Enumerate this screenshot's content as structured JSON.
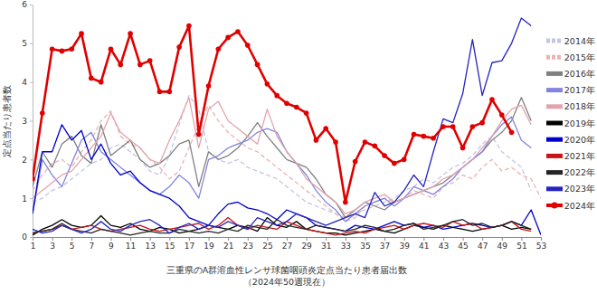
{
  "chart_data": {
    "type": "line",
    "title": "三重県のA群溶血性レンサ球菌咽頭炎定点当たり患者届出数",
    "subtitle": "（2024年50週現在）",
    "y_label": "定点当たり患者数",
    "x": [
      1,
      2,
      3,
      4,
      5,
      6,
      7,
      8,
      9,
      10,
      11,
      12,
      13,
      14,
      15,
      16,
      17,
      18,
      19,
      20,
      21,
      22,
      23,
      24,
      25,
      26,
      27,
      28,
      29,
      30,
      31,
      32,
      33,
      34,
      35,
      36,
      37,
      38,
      39,
      40,
      41,
      42,
      43,
      44,
      45,
      46,
      47,
      48,
      49,
      50,
      51,
      52,
      53
    ],
    "xlim": [
      1,
      53
    ],
    "xticks": [
      1,
      3,
      5,
      7,
      9,
      11,
      13,
      15,
      17,
      19,
      21,
      23,
      25,
      27,
      29,
      31,
      33,
      35,
      37,
      39,
      41,
      43,
      45,
      47,
      49,
      51,
      53
    ],
    "ylim": [
      0,
      6
    ],
    "yticks": [
      0,
      1,
      2,
      3,
      4,
      5,
      6
    ],
    "grid": false,
    "legend": "right",
    "series": [
      {
        "name": "2014年",
        "color": "#c4c4e4",
        "line_style": "dashed",
        "values": [
          0.9,
          1.0,
          1.2,
          1.3,
          1.5,
          1.7,
          1.9,
          2.0,
          2.3,
          2.4,
          2.2,
          2.0,
          1.7,
          1.6,
          2.1,
          2.9,
          3.65,
          3.3,
          2.2,
          2.0,
          1.9,
          2.0,
          1.8,
          1.7,
          1.6,
          1.5,
          1.3,
          1.1,
          0.9,
          0.8,
          0.7,
          0.6,
          0.5,
          0.6,
          0.7,
          0.8,
          0.9,
          1.0,
          1.2,
          1.3,
          1.5,
          1.4,
          1.6,
          1.8,
          1.9,
          2.1,
          2.4,
          2.6,
          2.2,
          2.0,
          1.8,
          1.2,
          null
        ]
      },
      {
        "name": "2015年",
        "color": "#e8b4b4",
        "line_style": "dashed",
        "values": [
          1.2,
          1.6,
          1.9,
          2.0,
          1.8,
          2.2,
          2.5,
          3.0,
          3.25,
          2.6,
          2.4,
          2.3,
          2.0,
          1.8,
          1.5,
          1.7,
          2.3,
          2.9,
          3.4,
          3.0,
          2.7,
          2.5,
          2.3,
          2.2,
          2.0,
          1.8,
          1.6,
          1.4,
          1.2,
          1.0,
          0.8,
          0.6,
          0.4,
          0.5,
          0.8,
          0.9,
          1.0,
          0.9,
          1.0,
          1.2,
          1.1,
          1.0,
          1.3,
          1.4,
          1.6,
          1.5,
          1.8,
          2.0,
          1.7,
          1.8,
          1.6,
          1.5,
          1.0
        ]
      },
      {
        "name": "2016年",
        "color": "#808080",
        "line_style": "solid",
        "values": [
          1.3,
          2.2,
          1.8,
          2.4,
          2.6,
          2.1,
          1.9,
          2.9,
          2.1,
          2.3,
          2.5,
          2.0,
          1.8,
          1.9,
          2.1,
          2.4,
          2.5,
          1.3,
          2.2,
          2.0,
          2.1,
          2.3,
          2.6,
          2.95,
          2.6,
          2.3,
          2.0,
          1.9,
          1.8,
          1.5,
          1.1,
          0.9,
          0.5,
          0.7,
          0.9,
          0.8,
          0.7,
          0.9,
          1.0,
          1.1,
          1.2,
          1.3,
          1.4,
          1.6,
          1.8,
          2.0,
          2.2,
          2.5,
          2.7,
          3.0,
          3.6,
          3.0,
          null
        ]
      },
      {
        "name": "2017年",
        "color": "#8484e0",
        "line_style": "solid",
        "values": [
          0.6,
          2.0,
          1.6,
          1.3,
          1.9,
          2.5,
          2.7,
          2.2,
          2.0,
          1.8,
          1.6,
          1.4,
          1.2,
          1.1,
          1.3,
          1.6,
          1.4,
          1.0,
          2.0,
          2.1,
          2.3,
          2.4,
          2.5,
          2.7,
          2.8,
          2.7,
          2.2,
          1.9,
          1.6,
          1.2,
          0.9,
          0.7,
          0.4,
          0.6,
          0.8,
          0.9,
          1.0,
          0.8,
          1.0,
          1.3,
          1.2,
          1.1,
          1.3,
          1.5,
          1.8,
          2.0,
          2.2,
          2.6,
          2.9,
          3.1,
          2.5,
          2.3,
          null
        ]
      },
      {
        "name": "2018年",
        "color": "#e2a4ac",
        "line_style": "solid",
        "values": [
          1.0,
          1.2,
          1.4,
          1.6,
          1.7,
          2.0,
          2.3,
          2.6,
          3.2,
          2.7,
          2.5,
          2.3,
          2.0,
          1.9,
          2.5,
          3.0,
          3.6,
          2.3,
          3.3,
          3.5,
          3.0,
          2.8,
          2.6,
          2.4,
          3.3,
          2.6,
          2.2,
          1.9,
          1.5,
          1.3,
          1.1,
          0.9,
          0.6,
          0.7,
          0.9,
          1.0,
          1.1,
          0.9,
          1.0,
          1.1,
          1.2,
          1.3,
          1.5,
          1.6,
          1.8,
          2.0,
          2.3,
          2.6,
          3.0,
          3.3,
          3.4,
          2.9,
          null
        ]
      },
      {
        "name": "2019年",
        "color": "#000000",
        "line_style": "solid",
        "values": [
          0.05,
          0.2,
          0.3,
          0.45,
          0.3,
          0.25,
          0.3,
          0.55,
          0.3,
          0.25,
          0.35,
          0.2,
          0.15,
          0.25,
          0.2,
          0.1,
          0.15,
          0.2,
          0.3,
          0.25,
          0.2,
          0.3,
          0.25,
          0.15,
          0.5,
          0.3,
          0.25,
          0.4,
          0.2,
          0.15,
          0.1,
          0.1,
          0.05,
          0.1,
          0.15,
          0.2,
          0.15,
          0.1,
          0.2,
          0.3,
          0.25,
          0.2,
          0.3,
          0.25,
          0.2,
          0.15,
          0.2,
          0.25,
          0.3,
          0.2,
          0.25,
          0.2,
          null
        ]
      },
      {
        "name": "2020年",
        "color": "#0000cc",
        "line_style": "solid",
        "values": [
          0.6,
          2.2,
          2.2,
          2.9,
          2.5,
          2.75,
          2.0,
          2.4,
          1.9,
          1.6,
          1.7,
          1.4,
          1.2,
          1.1,
          1.0,
          0.8,
          0.5,
          0.4,
          0.3,
          0.6,
          0.85,
          0.9,
          0.75,
          0.7,
          0.6,
          0.45,
          0.7,
          0.6,
          0.5,
          0.3,
          0.25,
          0.2,
          0.15,
          0.3,
          0.25,
          0.2,
          0.3,
          0.4,
          0.3,
          0.35,
          0.25,
          0.3,
          0.2,
          0.25,
          0.3,
          0.35,
          0.3,
          0.25,
          0.3,
          0.4,
          0.3,
          0.7,
          0.05
        ]
      },
      {
        "name": "2021年",
        "color": "#c81414",
        "line_style": "solid",
        "values": [
          0.1,
          0.15,
          0.2,
          0.3,
          0.2,
          0.25,
          0.3,
          0.2,
          0.15,
          0.2,
          0.25,
          0.3,
          0.2,
          0.15,
          0.2,
          0.25,
          0.3,
          0.35,
          0.2,
          0.3,
          0.5,
          0.3,
          0.2,
          0.3,
          0.25,
          0.2,
          0.4,
          0.3,
          0.2,
          0.15,
          0.1,
          0.05,
          0.1,
          0.15,
          0.1,
          0.2,
          0.25,
          0.3,
          0.2,
          0.3,
          0.35,
          0.3,
          0.25,
          0.4,
          0.3,
          0.35,
          0.2,
          0.25,
          0.3,
          0.4,
          0.2,
          0.15,
          null
        ]
      },
      {
        "name": "2022年",
        "color": "#242424",
        "line_style": "solid",
        "values": [
          0.1,
          0.15,
          0.2,
          0.35,
          0.2,
          0.15,
          0.1,
          0.2,
          0.15,
          0.1,
          0.05,
          0.1,
          0.15,
          0.1,
          0.1,
          0.2,
          0.15,
          0.1,
          0.15,
          0.1,
          0.2,
          0.15,
          0.3,
          0.25,
          0.2,
          0.45,
          0.3,
          0.25,
          0.2,
          0.3,
          0.25,
          0.2,
          0.15,
          0.2,
          0.3,
          0.25,
          0.15,
          0.2,
          0.3,
          0.35,
          0.2,
          0.25,
          0.3,
          0.4,
          0.45,
          0.3,
          0.35,
          0.25,
          0.3,
          0.4,
          0.3,
          0.2,
          null
        ]
      },
      {
        "name": "2023年",
        "color": "#2424c0",
        "line_style": "solid",
        "values": [
          0.2,
          0.1,
          0.15,
          0.3,
          0.2,
          0.1,
          0.2,
          0.4,
          0.2,
          0.15,
          0.3,
          0.4,
          0.45,
          0.3,
          0.1,
          0.25,
          0.35,
          0.2,
          0.3,
          0.25,
          0.4,
          0.3,
          0.2,
          0.5,
          0.4,
          0.3,
          0.4,
          0.6,
          0.5,
          0.4,
          0.3,
          0.4,
          0.5,
          0.6,
          0.5,
          1.15,
          0.8,
          0.9,
          1.2,
          1.6,
          1.3,
          2.2,
          3.05,
          2.95,
          3.7,
          5.1,
          3.65,
          4.5,
          4.55,
          5.0,
          5.65,
          5.45,
          null
        ]
      },
      {
        "name": "2024年",
        "color": "#e00000",
        "line_style": "solid",
        "marker": "circle",
        "values": [
          1.5,
          3.2,
          4.85,
          4.8,
          4.85,
          5.25,
          4.1,
          4.0,
          4.85,
          4.45,
          5.25,
          4.45,
          4.55,
          3.75,
          3.75,
          4.9,
          5.45,
          2.65,
          3.9,
          4.85,
          5.15,
          5.3,
          4.95,
          4.45,
          3.95,
          3.65,
          3.45,
          3.35,
          3.2,
          2.5,
          2.8,
          2.45,
          0.9,
          1.95,
          2.45,
          2.35,
          2.1,
          1.9,
          2.0,
          2.65,
          2.6,
          2.55,
          2.85,
          2.85,
          2.3,
          2.85,
          2.95,
          3.55,
          3.15,
          2.7,
          null,
          null,
          null
        ]
      }
    ]
  }
}
